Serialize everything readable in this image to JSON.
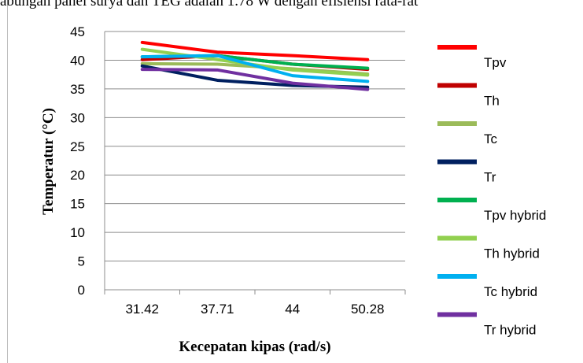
{
  "top_text": "abungan panel surya dan TEG adalah 1.78 W dengan efisiensi rata-rat",
  "chart_data": {
    "type": "line",
    "title": "",
    "xlabel": "Kecepatan kipas (rad/s)",
    "ylabel": "Temperatur (°C)",
    "categories": [
      "31.42",
      "37.71",
      "44",
      "50.28"
    ],
    "ylim": [
      0,
      45
    ],
    "yticks": [
      0,
      5,
      10,
      15,
      20,
      25,
      30,
      35,
      40,
      45
    ],
    "grid": true,
    "legend_position": "right",
    "series": [
      {
        "name": "Tpv",
        "color": "#ff0000",
        "values": [
          43.1,
          41.4,
          40.8,
          40.1
        ]
      },
      {
        "name": "Th",
        "color": "#c00000",
        "values": [
          40.1,
          40.8,
          39.3,
          38.4
        ]
      },
      {
        "name": "Tc",
        "color": "#9bbb59",
        "values": [
          39.4,
          39.3,
          38.5,
          37.6
        ]
      },
      {
        "name": "Tr",
        "color": "#002060",
        "values": [
          39.0,
          36.5,
          35.6,
          35.3
        ]
      },
      {
        "name": "Tpv hybrid",
        "color": "#00b050",
        "values": [
          40.6,
          40.8,
          39.3,
          38.6
        ]
      },
      {
        "name": "Th hybrid",
        "color": "#92d050",
        "values": [
          41.9,
          40.1,
          38.3,
          37.4
        ]
      },
      {
        "name": "Tc hybrid",
        "color": "#00b0f0",
        "values": [
          40.6,
          40.8,
          37.3,
          36.3
        ]
      },
      {
        "name": "Tr hybrid",
        "color": "#7030a0",
        "values": [
          38.4,
          38.3,
          36.0,
          34.9
        ]
      }
    ]
  }
}
